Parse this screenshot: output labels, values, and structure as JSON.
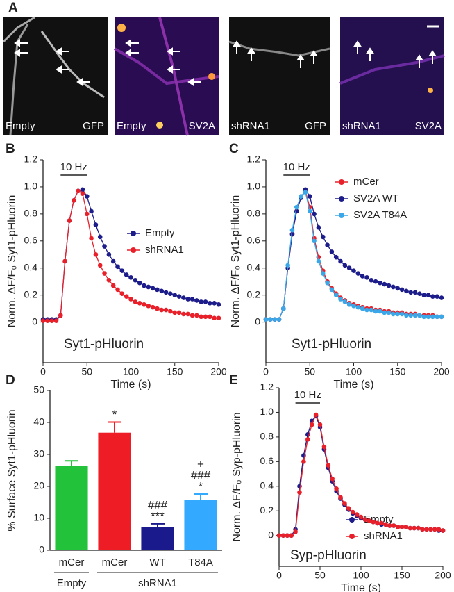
{
  "figure": {
    "panel_a": {
      "label": "A",
      "images": [
        [
          "Empty",
          "GFP"
        ],
        [
          "Empty",
          "SV2A"
        ],
        [
          "shRNA1",
          "GFP"
        ],
        [
          "shRNA1",
          "SV2A"
        ]
      ]
    }
  },
  "chart_data": [
    {
      "type": "line",
      "panel": "B",
      "xlabel": "Time (s)",
      "ylabel": "Norm. ΔF/F₀ Syt1-pHluorin",
      "annotation": "Syt1-pHluorin",
      "stimulus": {
        "label": "10 Hz",
        "start": 20,
        "end": 50
      },
      "xlim": [
        0,
        200
      ],
      "xticks": [
        0,
        50,
        100,
        150,
        200
      ],
      "ylim": [
        -0.3,
        1.2
      ],
      "yticks": [
        0,
        0.2,
        0.4,
        0.6,
        0.8,
        {
          "value": 1,
          "label": "1.0"
        },
        1.2
      ],
      "x": [
        0,
        5,
        10,
        15,
        20,
        25,
        30,
        35,
        40,
        45,
        50,
        55,
        60,
        65,
        70,
        75,
        80,
        85,
        90,
        95,
        100,
        105,
        110,
        115,
        120,
        125,
        130,
        135,
        140,
        145,
        150,
        155,
        160,
        165,
        170,
        175,
        180,
        185,
        190,
        195,
        200
      ],
      "series": [
        {
          "name": "Empty",
          "color": "#1c1c8a",
          "values": [
            0.02,
            0.02,
            0.02,
            0.02,
            0.05,
            0.45,
            0.75,
            0.9,
            0.97,
            0.98,
            0.93,
            0.82,
            0.72,
            0.63,
            0.56,
            0.5,
            0.45,
            0.41,
            0.38,
            0.35,
            0.33,
            0.31,
            0.29,
            0.27,
            0.26,
            0.25,
            0.24,
            0.23,
            0.22,
            0.21,
            0.2,
            0.19,
            0.18,
            0.17,
            0.17,
            0.16,
            0.15,
            0.15,
            0.14,
            0.14,
            0.13
          ]
        },
        {
          "name": "shRNA1",
          "color": "#e8202a",
          "values": [
            0.01,
            0.01,
            0.01,
            0.01,
            0.05,
            0.45,
            0.75,
            0.9,
            0.97,
            0.95,
            0.8,
            0.62,
            0.5,
            0.42,
            0.36,
            0.31,
            0.27,
            0.24,
            0.21,
            0.19,
            0.17,
            0.15,
            0.14,
            0.13,
            0.12,
            0.11,
            0.1,
            0.09,
            0.09,
            0.08,
            0.07,
            0.07,
            0.06,
            0.06,
            0.05,
            0.05,
            0.04,
            0.04,
            0.04,
            0.03,
            0.03
          ]
        }
      ]
    },
    {
      "type": "line",
      "panel": "C",
      "xlabel": "Time (s)",
      "ylabel": "Norm. ΔF/F₀ Syt1-pHluorin",
      "annotation": "Syt1-pHluorin",
      "stimulus": {
        "label": "10 Hz",
        "start": 20,
        "end": 50
      },
      "xlim": [
        0,
        200
      ],
      "xticks": [
        0,
        50,
        100,
        150,
        200
      ],
      "ylim": [
        -0.3,
        1.2
      ],
      "yticks": [
        0,
        0.2,
        0.4,
        0.6,
        0.8,
        {
          "value": 1,
          "label": "1.0"
        },
        1.2
      ],
      "x": [
        0,
        5,
        10,
        15,
        20,
        25,
        30,
        35,
        40,
        45,
        50,
        55,
        60,
        65,
        70,
        75,
        80,
        85,
        90,
        95,
        100,
        105,
        110,
        115,
        120,
        125,
        130,
        135,
        140,
        145,
        150,
        155,
        160,
        165,
        170,
        175,
        180,
        185,
        190,
        195,
        200
      ],
      "series": [
        {
          "name": "mCer",
          "color": "#e8202a",
          "values": [
            0.02,
            0.02,
            0.02,
            0.02,
            0.1,
            0.4,
            0.65,
            0.82,
            0.92,
            0.97,
            0.85,
            0.62,
            0.48,
            0.38,
            0.3,
            0.25,
            0.21,
            0.18,
            0.16,
            0.14,
            0.13,
            0.12,
            0.11,
            0.1,
            0.1,
            0.09,
            0.09,
            0.08,
            0.08,
            0.07,
            0.07,
            0.07,
            0.06,
            0.06,
            0.06,
            0.05,
            0.05,
            0.05,
            0.05,
            0.04,
            0.04
          ]
        },
        {
          "name": "SV2A WT",
          "color": "#1c1c8a",
          "values": [
            0.02,
            0.02,
            0.02,
            0.02,
            0.1,
            0.4,
            0.65,
            0.82,
            0.92,
            0.98,
            0.93,
            0.8,
            0.7,
            0.63,
            0.57,
            0.52,
            0.48,
            0.45,
            0.42,
            0.4,
            0.38,
            0.36,
            0.34,
            0.33,
            0.31,
            0.3,
            0.29,
            0.28,
            0.27,
            0.26,
            0.25,
            0.24,
            0.23,
            0.22,
            0.22,
            0.21,
            0.2,
            0.2,
            0.19,
            0.19,
            0.18
          ]
        },
        {
          "name": "SV2A T84A",
          "color": "#3aa8e8",
          "values": [
            0.02,
            0.02,
            0.02,
            0.02,
            0.1,
            0.42,
            0.68,
            0.85,
            0.93,
            0.96,
            0.82,
            0.6,
            0.45,
            0.36,
            0.29,
            0.24,
            0.2,
            0.17,
            0.15,
            0.13,
            0.12,
            0.11,
            0.1,
            0.09,
            0.09,
            0.08,
            0.08,
            0.07,
            0.07,
            0.06,
            0.06,
            0.06,
            0.05,
            0.05,
            0.05,
            0.05,
            0.04,
            0.04,
            0.04,
            0.04,
            0.04
          ]
        }
      ]
    },
    {
      "type": "bar",
      "panel": "D",
      "ylabel": "% Surface Syt1-pHluorin",
      "ylim": [
        0,
        50
      ],
      "yticks": [
        0,
        10,
        20,
        30,
        40,
        50
      ],
      "categories": [
        "mCer",
        "mCer",
        "WT",
        "T84A"
      ],
      "groups": [
        {
          "label": "Empty",
          "span": [
            0,
            0
          ]
        },
        {
          "label": "shRNA1",
          "span": [
            1,
            3
          ]
        }
      ],
      "values": [
        26.5,
        36.8,
        7.3,
        15.8
      ],
      "errors": [
        1.5,
        3.3,
        1.0,
        1.8
      ],
      "colors": [
        "#22c33a",
        "#ee1c24",
        "#1a1a8c",
        "#33aaff"
      ],
      "bar_labels": [
        null,
        [
          "*"
        ],
        [
          "###",
          "***"
        ],
        [
          "+",
          "###",
          "*"
        ]
      ]
    },
    {
      "type": "line",
      "panel": "E",
      "xlabel": "Time (s)",
      "ylabel": "Norm. ΔF/F₀ Syp-pHluorin",
      "annotation": "Syp-pHluorin",
      "stimulus": {
        "label": "10 Hz",
        "start": 20,
        "end": 50
      },
      "xlim": [
        0,
        200
      ],
      "xticks": [
        0,
        50,
        100,
        150,
        200
      ],
      "ylim": [
        -0.25,
        1.2
      ],
      "yticks": [
        0,
        0.2,
        0.4,
        0.6,
        0.8,
        {
          "value": 1,
          "label": "1.0"
        },
        1.2
      ],
      "x": [
        0,
        5,
        10,
        15,
        20,
        25,
        30,
        35,
        40,
        45,
        50,
        55,
        60,
        65,
        70,
        75,
        80,
        85,
        90,
        95,
        100,
        105,
        110,
        115,
        120,
        125,
        130,
        135,
        140,
        145,
        150,
        155,
        160,
        165,
        170,
        175,
        180,
        185,
        190,
        195,
        200
      ],
      "series": [
        {
          "name": "Empty",
          "color": "#1c1c8a",
          "values": [
            0,
            0,
            0,
            0,
            0.05,
            0.4,
            0.65,
            0.82,
            0.93,
            0.97,
            0.88,
            0.7,
            0.55,
            0.44,
            0.36,
            0.3,
            0.25,
            0.21,
            0.18,
            0.16,
            0.14,
            0.13,
            0.12,
            0.11,
            0.1,
            0.09,
            0.09,
            0.08,
            0.08,
            0.07,
            0.07,
            0.07,
            0.06,
            0.06,
            0.06,
            0.05,
            0.05,
            0.05,
            0.05,
            0.04,
            0.04
          ]
        },
        {
          "name": "shRNA1",
          "color": "#e8202a",
          "values": [
            0,
            0,
            0,
            0,
            0.03,
            0.35,
            0.6,
            0.78,
            0.9,
            0.98,
            0.9,
            0.72,
            0.57,
            0.46,
            0.38,
            0.31,
            0.26,
            0.22,
            0.19,
            0.17,
            0.15,
            0.13,
            0.12,
            0.11,
            0.1,
            0.1,
            0.09,
            0.08,
            0.08,
            0.07,
            0.07,
            0.07,
            0.06,
            0.06,
            0.06,
            0.05,
            0.05,
            0.05,
            0.05,
            0.05,
            0.04
          ]
        }
      ]
    }
  ]
}
